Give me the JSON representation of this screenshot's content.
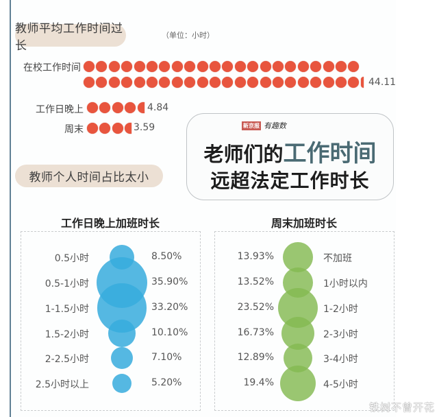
{
  "section1": {
    "title": "教师平均工作时间过长",
    "unit": "（单位：小时）",
    "rows": [
      {
        "label": "在校工作时间",
        "value": "44.11",
        "dots_full": 44,
        "dots_partial": "sliver"
      },
      {
        "label": "工作日晚上",
        "value": "4.84",
        "dots_full": 4,
        "dots_partial": "half"
      },
      {
        "label": "周末",
        "value": "3.59",
        "dots_full": 3,
        "dots_partial": "half"
      }
    ]
  },
  "section2": {
    "title": "教师个人时间占比太小"
  },
  "headline_card": {
    "logo_box": "新京报",
    "logo_text": "有趣数",
    "line1_prefix": "老师们的",
    "line1_accent": "工作时间",
    "line2": "远超法定工作时长"
  },
  "watermark": "铁树不曾开花",
  "colors": {
    "dot": "#e8553e",
    "weekday_bubble": "#37acdd",
    "weekend_bubble": "#84ba52",
    "pill_bg": "#ece0d4",
    "headline_accent": "#4a6a73"
  },
  "chart_data": [
    {
      "type": "pictograph",
      "title": "教师平均工作时间过长",
      "subtitle": "（单位：小时）",
      "categories": [
        "在校工作时间",
        "工作日晚上",
        "周末"
      ],
      "values": [
        44.11,
        4.84,
        3.59
      ],
      "unit": "小时",
      "symbol": "red dot = 1 hour"
    },
    {
      "type": "bubble",
      "title": "工作日晚上加班时长",
      "categories": [
        "0.5小时",
        "0.5-1小时",
        "1-1.5小时",
        "1.5-2小时",
        "2-2.5小时",
        "2.5小时以上"
      ],
      "values": [
        8.5,
        35.9,
        33.2,
        10.1,
        7.1,
        5.2
      ],
      "labels": [
        "8.50%",
        "35.90%",
        "33.20%",
        "10.10%",
        "7.10%",
        "5.20%"
      ],
      "unit": "%",
      "color": "#37acdd"
    },
    {
      "type": "bubble",
      "title": "周末加班时长",
      "categories": [
        "不加班",
        "1小时以内",
        "1-2小时",
        "2-3小时",
        "3-4小时",
        "4-5小时"
      ],
      "values": [
        13.93,
        13.52,
        23.52,
        16.73,
        12.89,
        19.4
      ],
      "labels": [
        "13.93%",
        "13.52%",
        "23.52%",
        "16.73%",
        "12.89%",
        "19.4%"
      ],
      "unit": "%",
      "color": "#84ba52"
    }
  ],
  "weekday_chart": {
    "title": "工作日晚上加班时长",
    "rows": [
      {
        "label": "0.5小时",
        "pct": "8.50%"
      },
      {
        "label": "0.5-1小时",
        "pct": "35.90%"
      },
      {
        "label": "1-1.5小时",
        "pct": "33.20%"
      },
      {
        "label": "1.5-2小时",
        "pct": "10.10%"
      },
      {
        "label": "2-2.5小时",
        "pct": "7.10%"
      },
      {
        "label": "2.5小时以上",
        "pct": "5.20%"
      }
    ]
  },
  "weekend_chart": {
    "title": "周末加班时长",
    "rows": [
      {
        "label": "不加班",
        "pct": "13.93%"
      },
      {
        "label": "1小时以内",
        "pct": "13.52%"
      },
      {
        "label": "1-2小时",
        "pct": "23.52%"
      },
      {
        "label": "2-3小时",
        "pct": "16.73%"
      },
      {
        "label": "3-4小时",
        "pct": "12.89%"
      },
      {
        "label": "4-5小时",
        "pct": "19.4%"
      }
    ]
  }
}
